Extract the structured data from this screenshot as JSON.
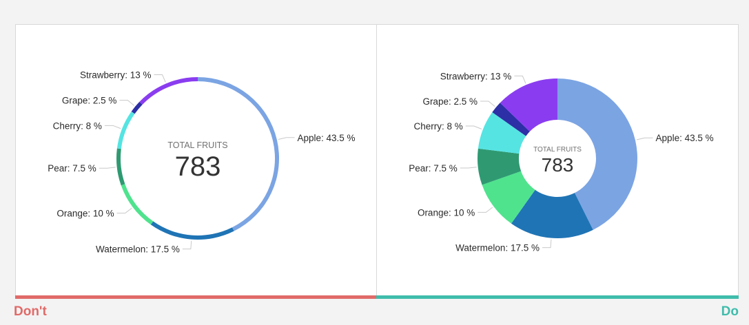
{
  "chart_data": [
    {
      "type": "donut",
      "variant": "thin-ring",
      "center_caption": "TOTAL FRUITS",
      "center_value": "783",
      "slices": [
        {
          "label": "Apple",
          "display": "Apple: 43.5 %",
          "value": 43.5
        },
        {
          "label": "Watermelon",
          "display": "Watermelon: 17.5 %",
          "value": 17.5
        },
        {
          "label": "Orange",
          "display": "Orange: 10 %",
          "value": 10
        },
        {
          "label": "Pear",
          "display": "Pear: 7.5 %",
          "value": 7.5
        },
        {
          "label": "Cherry",
          "display": "Cherry: 8 %",
          "value": 8
        },
        {
          "label": "Grape",
          "display": "Grape: 2.5 %",
          "value": 2.5
        },
        {
          "label": "Strawberry",
          "display": "Strawberry: 13 %",
          "value": 13
        }
      ]
    },
    {
      "type": "donut",
      "variant": "thick-ring",
      "center_caption": "TOTAL FRUITS",
      "center_value": "783",
      "slices": [
        {
          "label": "Apple",
          "display": "Apple: 43.5 %",
          "value": 43.5
        },
        {
          "label": "Watermelon",
          "display": "Watermelon: 17.5 %",
          "value": 17.5
        },
        {
          "label": "Orange",
          "display": "Orange: 10 %",
          "value": 10
        },
        {
          "label": "Pear",
          "display": "Pear: 7.5 %",
          "value": 7.5
        },
        {
          "label": "Cherry",
          "display": "Cherry: 8 %",
          "value": 8
        },
        {
          "label": "Grape",
          "display": "Grape: 2.5 %",
          "value": 2.5
        },
        {
          "label": "Strawberry",
          "display": "Strawberry: 13 %",
          "value": 13
        }
      ]
    }
  ],
  "slice_colors": {
    "Apple": "#7ba4e3",
    "Watermelon": "#1f74b5",
    "Orange": "#4fe38e",
    "Pear": "#2f9a72",
    "Cherry": "#55e4e2",
    "Grape": "#2c2fa5",
    "Strawberry": "#8a3df0"
  },
  "footer": {
    "dont_label": "Don't",
    "do_label": "Do",
    "dont_color": "#e06a68",
    "do_color": "#3fbcab"
  }
}
